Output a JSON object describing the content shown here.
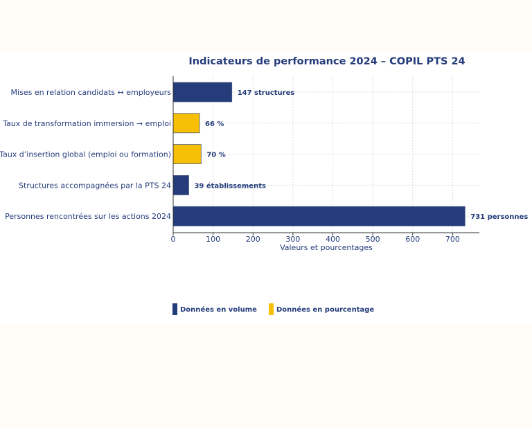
{
  "chart_data": {
    "type": "bar",
    "orientation": "horizontal",
    "title": "Indicateurs de performance 2024 – COPIL PTS 24",
    "xlabel": "Valeurs et pourcentages",
    "ylabel": "",
    "xlim": [
      0,
      767
    ],
    "xticks": [
      0,
      100,
      200,
      300,
      400,
      500,
      600,
      700
    ],
    "grid": true,
    "categories": [
      "Mises en relation candidats ↔ employeurs",
      "Taux de transformation immersion → emploi",
      "Taux d’insertion global (emploi ou formation)",
      "Structures accompagnées par la PTS 24",
      "Personnes rencontrées sur les actions 2024"
    ],
    "values": [
      147,
      66,
      70,
      39,
      731
    ],
    "kinds": [
      "volume",
      "pourcentage",
      "pourcentage",
      "volume",
      "volume"
    ],
    "data_labels": [
      "147 structures",
      "66 %",
      "70 %",
      "39 établissements",
      "731 personnes"
    ],
    "legend": {
      "placement": "bottom",
      "entries": [
        {
          "key": "volume",
          "label": "Données en volume",
          "color": "#243c7a"
        },
        {
          "key": "pourcentage",
          "label": "Données en pourcentage",
          "color": "#f8bf07"
        }
      ]
    }
  }
}
